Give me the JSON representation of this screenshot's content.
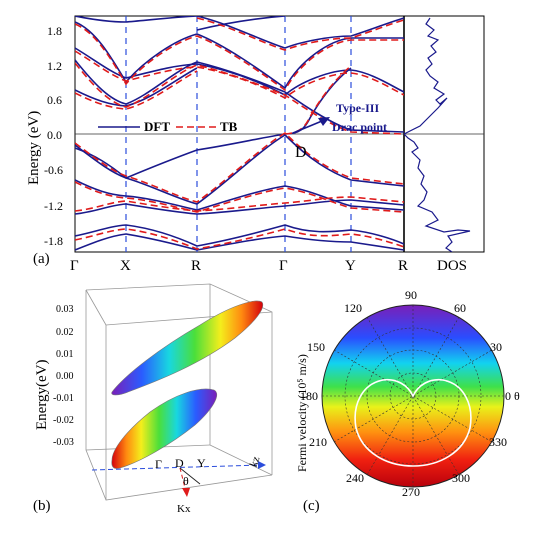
{
  "panel_a": {
    "panel_label": "(a)",
    "ylabel": "Energy (eV)",
    "yticks": [
      "1.8",
      "1.2",
      "0.6",
      "0.0",
      "-0.6",
      "-1.2",
      "-1.8"
    ],
    "kpoints": [
      "Γ",
      "X",
      "R",
      "Γ",
      "Y",
      "R"
    ],
    "dos_label": "DOS",
    "legend": {
      "dft": "DFT",
      "tb": "TB"
    },
    "annotation": {
      "line1": "Type-III",
      "line2": "Drac point"
    },
    "d_label": "D",
    "colors": {
      "dft": "#1a1a8c",
      "tb": "#e01b1b",
      "kline": "#2b4ddc"
    }
  },
  "panel_b": {
    "panel_label": "(b)",
    "zlabel": "Energy(eV)",
    "zticks": [
      "0.03",
      "0.02",
      "0.01",
      "0.00",
      "-0.01",
      "-0.02",
      "-0.03"
    ],
    "axis_labels": {
      "gamma": "Γ",
      "d": "D",
      "y": "Y",
      "kz": "kz",
      "theta": "θ",
      "kx": "Kx"
    }
  },
  "panel_c": {
    "panel_label": "(c)",
    "ylabel": "Fermi velocity (10⁵ m/s)",
    "angles": [
      "90",
      "60",
      "30",
      "0 θ",
      "330",
      "300",
      "270",
      "240",
      "210",
      "180",
      "150",
      "120"
    ]
  },
  "chart_data": [
    {
      "type": "line",
      "title": "",
      "xlabel": "",
      "ylabel": "Energy (eV)",
      "x_ticks": [
        "Γ",
        "X",
        "R",
        "Γ",
        "Y",
        "R"
      ],
      "ylim": [
        -2.0,
        2.0
      ],
      "series": [
        {
          "name": "DFT"
        },
        {
          "name": "TB"
        }
      ],
      "annotations": [
        "Type-III Drac point",
        "D"
      ],
      "right_panel": "DOS"
    },
    {
      "type": "polar",
      "ylabel": "Fermi velocity (10⁵ m/s)",
      "angle_ticks_deg": [
        0,
        30,
        60,
        90,
        120,
        150,
        180,
        210,
        240,
        270,
        300,
        330
      ]
    }
  ]
}
